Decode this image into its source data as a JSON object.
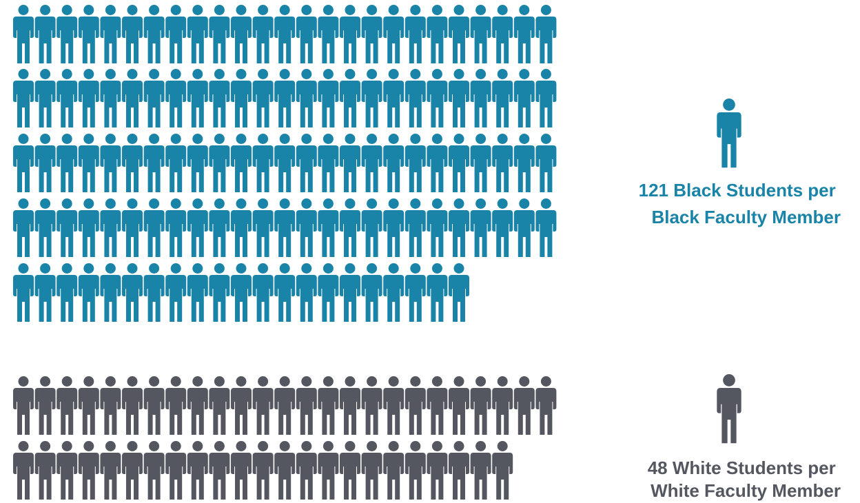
{
  "chart_data": {
    "type": "pictogram",
    "icons_per_row": 25,
    "series": [
      {
        "group": "black",
        "count": 121,
        "color": "#1a84a8",
        "caption_lines": [
          "121 Black Students per",
          "Black Faculty Member"
        ]
      },
      {
        "group": "white",
        "count": 48,
        "color": "#545760",
        "caption_lines": [
          "48 White Students per",
          "White Faculty Member"
        ]
      }
    ]
  }
}
